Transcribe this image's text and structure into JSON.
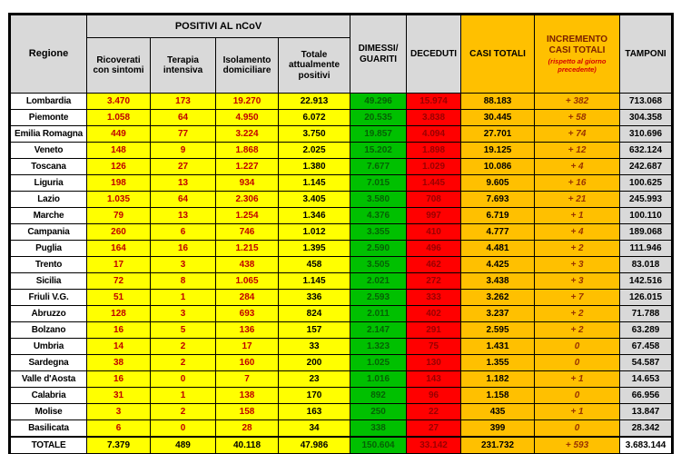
{
  "colors": {
    "yellow": "#ffff00",
    "green": "#00c000",
    "red": "#ff0000",
    "orange": "#ffc000",
    "grey_header": "#d9d9d9",
    "red_number_text": "#c00000",
    "green_number_text": "#056105",
    "deceduti_text": "#990000",
    "incremento_text": "#993300",
    "incremento_header_text": "#7b2000",
    "incremento_note_text": "#d40000"
  },
  "chart_data": {
    "type": "table",
    "header": {
      "regione": "Regione",
      "positivi_group": "POSITIVI AL nCoV",
      "ricoverati": "Ricoverati con sintomi",
      "terapia": "Terapia intensiva",
      "isolamento": "Isolamento domiciliare",
      "positivi": "Totale attualmente positivi",
      "guariti": "DIMESSI/ GUARITI",
      "deceduti": "DECEDUTI",
      "casi": "CASI TOTALI",
      "incremento": "INCREMENTO CASI TOTALI",
      "incremento_note": "(rispetto al giorno precedente)",
      "tamponi": "TAMPONI"
    },
    "rows": [
      {
        "region": "Lombardia",
        "ricoverati": "3.470",
        "terapia": "173",
        "isolamento": "19.270",
        "positivi": "22.913",
        "guariti": "49.296",
        "deceduti": "15.974",
        "casi": "88.183",
        "incremento": "+ 382",
        "tamponi": "713.068"
      },
      {
        "region": "Piemonte",
        "ricoverati": "1.058",
        "terapia": "64",
        "isolamento": "4.950",
        "positivi": "6.072",
        "guariti": "20.535",
        "deceduti": "3.838",
        "casi": "30.445",
        "incremento": "+ 58",
        "tamponi": "304.358"
      },
      {
        "region": "Emilia Romagna",
        "ricoverati": "449",
        "terapia": "77",
        "isolamento": "3.224",
        "positivi": "3.750",
        "guariti": "19.857",
        "deceduti": "4.094",
        "casi": "27.701",
        "incremento": "+ 74",
        "tamponi": "310.696"
      },
      {
        "region": "Veneto",
        "ricoverati": "148",
        "terapia": "9",
        "isolamento": "1.868",
        "positivi": "2.025",
        "guariti": "15.202",
        "deceduti": "1.898",
        "casi": "19.125",
        "incremento": "+ 12",
        "tamponi": "632.124"
      },
      {
        "region": "Toscana",
        "ricoverati": "126",
        "terapia": "27",
        "isolamento": "1.227",
        "positivi": "1.380",
        "guariti": "7.677",
        "deceduti": "1.029",
        "casi": "10.086",
        "incremento": "+ 4",
        "tamponi": "242.687"
      },
      {
        "region": "Liguria",
        "ricoverati": "198",
        "terapia": "13",
        "isolamento": "934",
        "positivi": "1.145",
        "guariti": "7.015",
        "deceduti": "1.445",
        "casi": "9.605",
        "incremento": "+ 16",
        "tamponi": "100.625"
      },
      {
        "region": "Lazio",
        "ricoverati": "1.035",
        "terapia": "64",
        "isolamento": "2.306",
        "positivi": "3.405",
        "guariti": "3.580",
        "deceduti": "708",
        "casi": "7.693",
        "incremento": "+ 21",
        "tamponi": "245.993"
      },
      {
        "region": "Marche",
        "ricoverati": "79",
        "terapia": "13",
        "isolamento": "1.254",
        "positivi": "1.346",
        "guariti": "4.376",
        "deceduti": "997",
        "casi": "6.719",
        "incremento": "+ 1",
        "tamponi": "100.110"
      },
      {
        "region": "Campania",
        "ricoverati": "260",
        "terapia": "6",
        "isolamento": "746",
        "positivi": "1.012",
        "guariti": "3.355",
        "deceduti": "410",
        "casi": "4.777",
        "incremento": "+ 4",
        "tamponi": "189.068"
      },
      {
        "region": "Puglia",
        "ricoverati": "164",
        "terapia": "16",
        "isolamento": "1.215",
        "positivi": "1.395",
        "guariti": "2.590",
        "deceduti": "496",
        "casi": "4.481",
        "incremento": "+ 2",
        "tamponi": "111.946"
      },
      {
        "region": "Trento",
        "ricoverati": "17",
        "terapia": "3",
        "isolamento": "438",
        "positivi": "458",
        "guariti": "3.505",
        "deceduti": "462",
        "casi": "4.425",
        "incremento": "+ 3",
        "tamponi": "83.018"
      },
      {
        "region": "Sicilia",
        "ricoverati": "72",
        "terapia": "8",
        "isolamento": "1.065",
        "positivi": "1.145",
        "guariti": "2.021",
        "deceduti": "272",
        "casi": "3.438",
        "incremento": "+ 3",
        "tamponi": "142.516"
      },
      {
        "region": "Friuli V.G.",
        "ricoverati": "51",
        "terapia": "1",
        "isolamento": "284",
        "positivi": "336",
        "guariti": "2.593",
        "deceduti": "333",
        "casi": "3.262",
        "incremento": "+ 7",
        "tamponi": "126.015"
      },
      {
        "region": "Abruzzo",
        "ricoverati": "128",
        "terapia": "3",
        "isolamento": "693",
        "positivi": "824",
        "guariti": "2.011",
        "deceduti": "402",
        "casi": "3.237",
        "incremento": "+ 2",
        "tamponi": "71.788"
      },
      {
        "region": "Bolzano",
        "ricoverati": "16",
        "terapia": "5",
        "isolamento": "136",
        "positivi": "157",
        "guariti": "2.147",
        "deceduti": "291",
        "casi": "2.595",
        "incremento": "+ 2",
        "tamponi": "63.289"
      },
      {
        "region": "Umbria",
        "ricoverati": "14",
        "terapia": "2",
        "isolamento": "17",
        "positivi": "33",
        "guariti": "1.323",
        "deceduti": "75",
        "casi": "1.431",
        "incremento": "0",
        "tamponi": "67.458"
      },
      {
        "region": "Sardegna",
        "ricoverati": "38",
        "terapia": "2",
        "isolamento": "160",
        "positivi": "200",
        "guariti": "1.025",
        "deceduti": "130",
        "casi": "1.355",
        "incremento": "0",
        "tamponi": "54.587"
      },
      {
        "region": "Valle d'Aosta",
        "ricoverati": "16",
        "terapia": "0",
        "isolamento": "7",
        "positivi": "23",
        "guariti": "1.016",
        "deceduti": "143",
        "casi": "1.182",
        "incremento": "+ 1",
        "tamponi": "14.653"
      },
      {
        "region": "Calabria",
        "ricoverati": "31",
        "terapia": "1",
        "isolamento": "138",
        "positivi": "170",
        "guariti": "892",
        "deceduti": "96",
        "casi": "1.158",
        "incremento": "0",
        "tamponi": "66.956"
      },
      {
        "region": "Molise",
        "ricoverati": "3",
        "terapia": "2",
        "isolamento": "158",
        "positivi": "163",
        "guariti": "250",
        "deceduti": "22",
        "casi": "435",
        "incremento": "+ 1",
        "tamponi": "13.847"
      },
      {
        "region": "Basilicata",
        "ricoverati": "6",
        "terapia": "0",
        "isolamento": "28",
        "positivi": "34",
        "guariti": "338",
        "deceduti": "27",
        "casi": "399",
        "incremento": "0",
        "tamponi": "28.342"
      }
    ],
    "total_row": {
      "region": "TOTALE",
      "ricoverati": "7.379",
      "terapia": "489",
      "isolamento": "40.118",
      "positivi": "47.986",
      "guariti": "150.604",
      "deceduti": "33.142",
      "casi": "231.732",
      "incremento": "+ 593",
      "tamponi": "3.683.144"
    }
  }
}
